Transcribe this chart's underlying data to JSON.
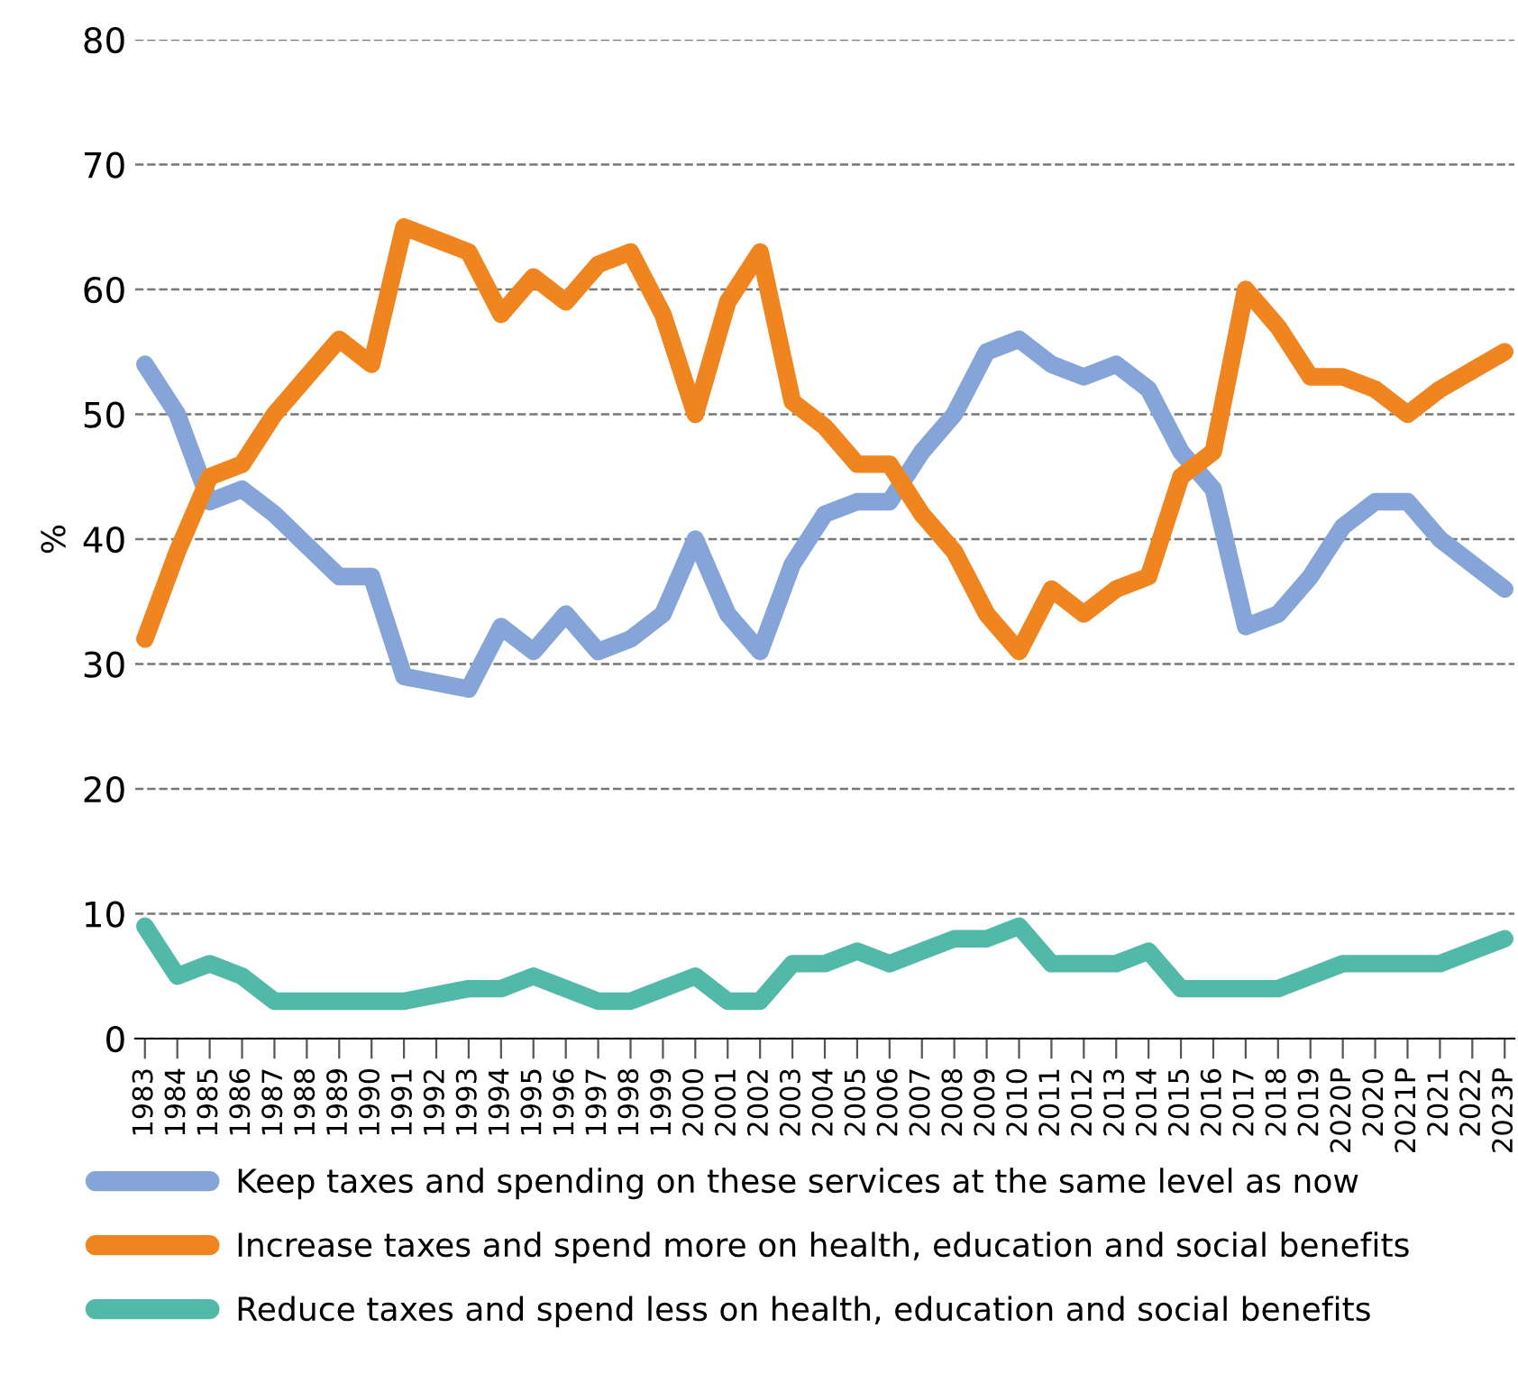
{
  "chart_data": {
    "type": "line",
    "ylabel": "%",
    "categories": [
      "1983",
      "1984",
      "1985",
      "1986",
      "1987",
      "1988",
      "1989",
      "1990",
      "1991",
      "1992",
      "1993",
      "1994",
      "1995",
      "1996",
      "1997",
      "1998",
      "1999",
      "2000",
      "2001",
      "2002",
      "2003",
      "2004",
      "2005",
      "2006",
      "2007",
      "2008",
      "2009",
      "2010",
      "2011",
      "2012",
      "2013",
      "2014",
      "2015",
      "2016",
      "2017",
      "2018",
      "2019",
      "2020P",
      "2020",
      "2021P",
      "2021",
      "2022",
      "2023P"
    ],
    "series": [
      {
        "name": "Keep taxes and spending on these services at the same level as now",
        "color": "#85a5d8",
        "values": [
          54,
          50,
          43,
          44,
          42,
          39.5,
          37,
          37,
          29,
          28.5,
          28,
          33,
          31,
          34,
          31,
          32,
          34,
          40,
          34,
          31,
          38,
          42,
          43,
          43,
          47,
          50,
          55,
          56,
          54,
          53,
          54,
          52,
          47,
          44,
          33,
          34,
          37,
          41,
          43,
          43,
          40,
          38,
          36
        ]
      },
      {
        "name": "Increase taxes and spend more on health, education and social benefits",
        "color": "#f0841e",
        "values": [
          32,
          39,
          45,
          46,
          50,
          53,
          56,
          54,
          65,
          64,
          63,
          58,
          61,
          59,
          62,
          63,
          58,
          50,
          59,
          63,
          51,
          49,
          46,
          46,
          42,
          39,
          34,
          31,
          36,
          34,
          36,
          37,
          45,
          47,
          60,
          57,
          53,
          53,
          52,
          50,
          52,
          53.5,
          55
        ]
      },
      {
        "name": "Reduce taxes and spend less on health, education and social benefits",
        "color": "#52b9a9",
        "values": [
          9,
          5,
          6,
          5,
          3,
          3,
          3,
          3,
          3,
          3.5,
          4,
          4,
          5,
          4,
          3,
          3,
          4,
          5,
          3,
          3,
          6,
          6,
          7,
          6,
          7,
          8,
          8,
          9,
          6,
          6,
          6,
          7,
          4,
          4,
          4,
          4,
          5,
          6,
          6,
          6,
          6,
          7,
          8
        ]
      }
    ],
    "ylim": [
      0,
      80
    ],
    "yticks": [
      0,
      10,
      20,
      30,
      40,
      50,
      60,
      70,
      80
    ],
    "grid": "y",
    "legend": "bottom",
    "line_style": "solid",
    "marker": "none"
  }
}
